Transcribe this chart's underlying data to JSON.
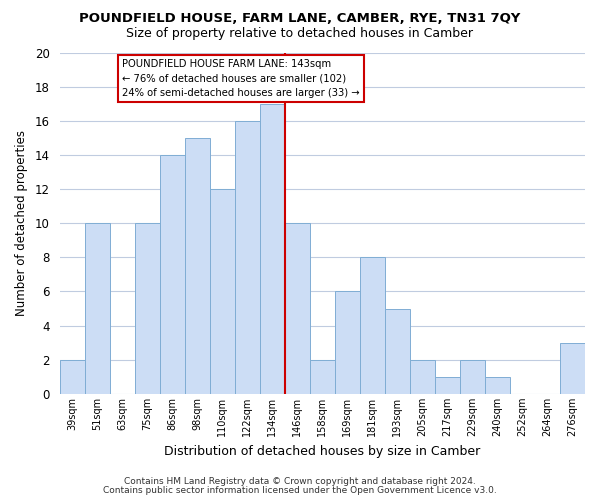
{
  "title": "POUNDFIELD HOUSE, FARM LANE, CAMBER, RYE, TN31 7QY",
  "subtitle": "Size of property relative to detached houses in Camber",
  "xlabel": "Distribution of detached houses by size in Camber",
  "ylabel": "Number of detached properties",
  "bar_labels": [
    "39sqm",
    "51sqm",
    "63sqm",
    "75sqm",
    "86sqm",
    "98sqm",
    "110sqm",
    "122sqm",
    "134sqm",
    "146sqm",
    "158sqm",
    "169sqm",
    "181sqm",
    "193sqm",
    "205sqm",
    "217sqm",
    "229sqm",
    "240sqm",
    "252sqm",
    "264sqm",
    "276sqm"
  ],
  "bar_heights": [
    2,
    10,
    0,
    10,
    14,
    15,
    12,
    16,
    17,
    10,
    2,
    6,
    8,
    5,
    2,
    1,
    2,
    1,
    0,
    0,
    3
  ],
  "bar_color": "#ccddf5",
  "bar_edge_color": "#7fadd4",
  "ref_line_index": 8.5,
  "annotation_title": "POUNDFIELD HOUSE FARM LANE: 143sqm",
  "annotation_line1": "← 76% of detached houses are smaller (102)",
  "annotation_line2": "24% of semi-detached houses are larger (33) →",
  "annotation_box_facecolor": "#ffffff",
  "annotation_box_edgecolor": "#cc0000",
  "ylim": [
    0,
    20
  ],
  "bg_color": "#ffffff",
  "grid_color": "#c0cce0",
  "footer1": "Contains HM Land Registry data © Crown copyright and database right 2024.",
  "footer2": "Contains public sector information licensed under the Open Government Licence v3.0."
}
